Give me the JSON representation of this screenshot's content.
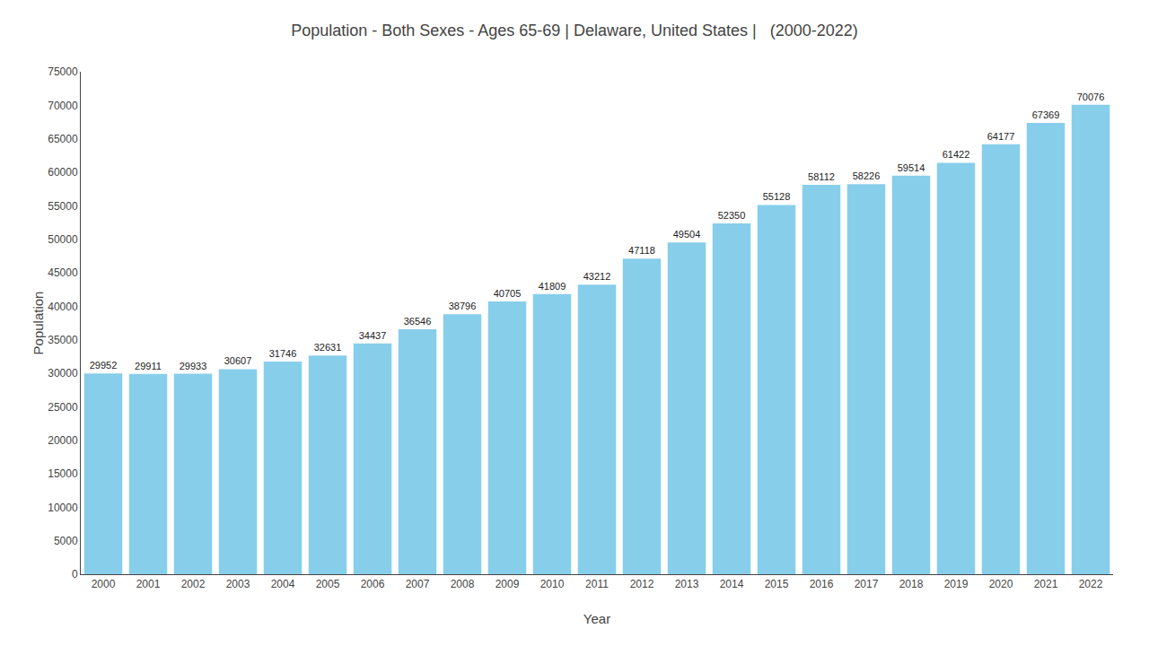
{
  "chart_data": {
    "type": "bar",
    "title": "Population - Both Sexes - Ages 65-69 | Delaware, United States |   (2000-2022)",
    "xlabel": "Year",
    "ylabel": "Population",
    "categories": [
      "2000",
      "2001",
      "2002",
      "2003",
      "2004",
      "2005",
      "2006",
      "2007",
      "2008",
      "2009",
      "2010",
      "2011",
      "2012",
      "2013",
      "2014",
      "2015",
      "2016",
      "2017",
      "2018",
      "2019",
      "2020",
      "2021",
      "2022"
    ],
    "values": [
      29952,
      29911,
      29933,
      30607,
      31746,
      32631,
      34437,
      36546,
      38796,
      40705,
      41809,
      43212,
      47118,
      49504,
      52350,
      55128,
      58112,
      58226,
      59514,
      61422,
      64177,
      67369,
      70076
    ],
    "color": "#87CEEB",
    "ylim": [
      0,
      75000
    ],
    "yticks": [
      0,
      5000,
      10000,
      15000,
      20000,
      25000,
      30000,
      35000,
      40000,
      45000,
      50000,
      55000,
      60000,
      65000,
      70000,
      75000
    ],
    "grid": false,
    "data_labels": true
  }
}
